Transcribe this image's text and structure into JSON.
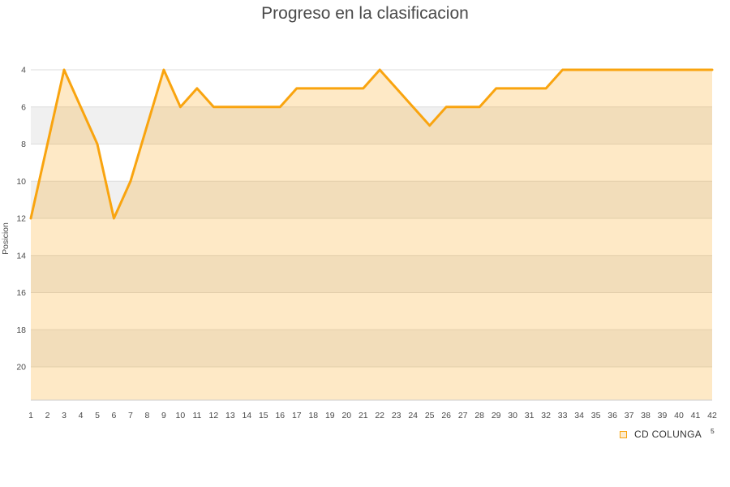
{
  "title": "Progreso en la clasificacion",
  "legend": {
    "label": "CD COLUNGA",
    "superscript": "5"
  },
  "colors": {
    "line": "#F9A40F",
    "area_fill": "rgba(249,164,15,0.24)",
    "band_alt": "#F0F0F0",
    "band_main": "#FFFFFF",
    "gridline": "#DCDCDC",
    "axis_line": "#CCCCCC",
    "title_text": "#4A4A4A",
    "axis_text": "#4A4A4A",
    "legend_text": "#333333",
    "legend_marker_fill": "#FCEBCE",
    "legend_marker_border": "#F9A40F"
  },
  "chart_data": {
    "type": "area",
    "title": "Progreso en la clasificacion",
    "xlabel": "",
    "ylabel": "Posicion",
    "x": [
      1,
      2,
      3,
      4,
      5,
      6,
      7,
      8,
      9,
      10,
      11,
      12,
      13,
      14,
      15,
      16,
      17,
      18,
      19,
      20,
      21,
      22,
      23,
      24,
      25,
      26,
      27,
      28,
      29,
      30,
      31,
      32,
      33,
      34,
      35,
      36,
      37,
      38,
      39,
      40,
      41,
      42
    ],
    "series": [
      {
        "name": "CD COLUNGA",
        "values": [
          12,
          8,
          4,
          6,
          8,
          12,
          10,
          7,
          4,
          6,
          5,
          6,
          6,
          6,
          6,
          6,
          5,
          5,
          5,
          5,
          5,
          4,
          5,
          6,
          7,
          6,
          6,
          6,
          5,
          5,
          5,
          5,
          4,
          4,
          4,
          4,
          4,
          4,
          4,
          4,
          4,
          4
        ]
      }
    ],
    "y_ticks": [
      4,
      6,
      8,
      10,
      12,
      14,
      16,
      18,
      20
    ],
    "y_inverted": true,
    "ylim": [
      4,
      21.8
    ],
    "grid": true,
    "alternating_bands": true,
    "legend_position": "bottom-right",
    "markers": false
  }
}
